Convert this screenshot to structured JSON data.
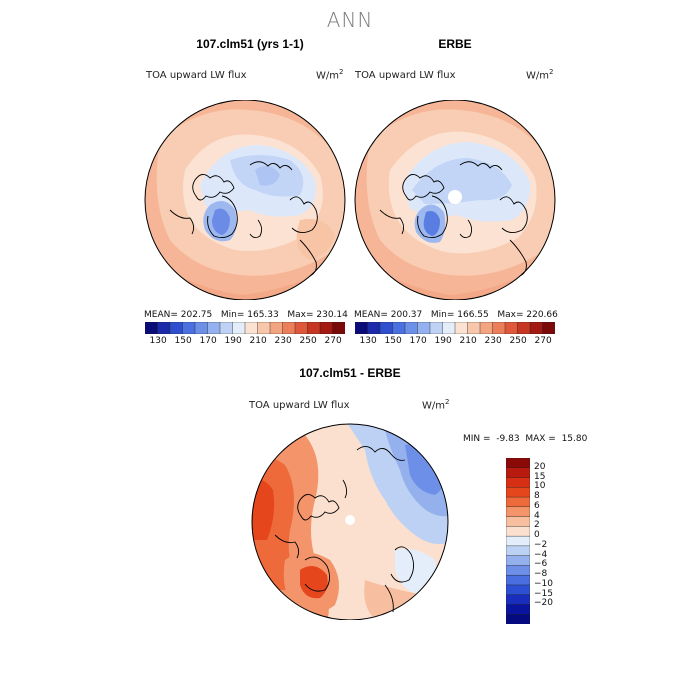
{
  "figure": {
    "title": "ANN"
  },
  "panels": {
    "model": {
      "title": "107.clm51 (yrs 1-1)",
      "variable": "TOA upward LW flux",
      "units_base": "W/m",
      "units_exp": "2",
      "mean_label": "MEAN=",
      "mean": "202.75",
      "min_label": "Min=",
      "min": "165.33",
      "max_label": "Max=",
      "max": "230.14"
    },
    "obs": {
      "title": "ERBE",
      "variable": "TOA upward LW flux",
      "units_base": "W/m",
      "units_exp": "2",
      "mean_label": "MEAN=",
      "mean": "200.37",
      "min_label": "Min=",
      "min": "166.55",
      "max_label": "Max=",
      "max": "220.66"
    },
    "diff": {
      "title": "107.clm51 - ERBE",
      "variable": "TOA upward LW flux",
      "units_base": "W/m",
      "units_exp": "2",
      "min_label": "MIN =",
      "min": "-9.83",
      "max_label": "MAX =",
      "max": "15.80"
    }
  },
  "colorbars": {
    "abs_labels": [
      "130",
      "150",
      "170",
      "190",
      "210",
      "230",
      "250",
      "270"
    ],
    "abs_colors": [
      "#0b0b7a",
      "#1a2aa8",
      "#2f4fcf",
      "#4a6fe0",
      "#6c8fe8",
      "#95b0ee",
      "#bfd2f5",
      "#e4eefb",
      "#fbe3d3",
      "#f7c6ab",
      "#f3a582",
      "#ec7f5a",
      "#e0583a",
      "#c73622",
      "#a31a12",
      "#7a0a08"
    ],
    "diff_labels": [
      "20",
      "15",
      "10",
      "8",
      "6",
      "4",
      "2",
      "0",
      "−2",
      "−4",
      "−6",
      "−8",
      "−10",
      "−15",
      "−20"
    ],
    "diff_colors": [
      "#8b0a08",
      "#b81a10",
      "#d62f14",
      "#e5461c",
      "#ee6a3a",
      "#f3946a",
      "#f7bfa0",
      "#fbe0cf",
      "#e4eefb",
      "#bcd1f4",
      "#94b1ee",
      "#6d8fe8",
      "#4a6ee0",
      "#2d4fd3",
      "#1a2ebd",
      "#0a14a0",
      "#050a80"
    ]
  }
}
